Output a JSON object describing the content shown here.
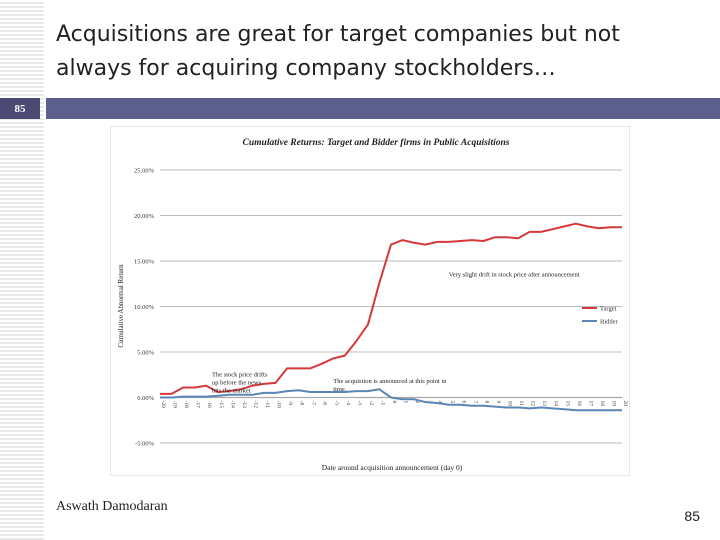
{
  "slide": {
    "title_line1": "Acquisitions are great for target companies but not",
    "title_line2": "always for acquiring company stockholders…",
    "slide_number_box": "85",
    "author": "Aswath Damodaran",
    "page_number": "85"
  },
  "colors": {
    "target": "#d43a3a",
    "bidder": "#5a86b6",
    "header_bar": "#5c5f8c",
    "number_box": "#4a4a72"
  },
  "chart_data": {
    "type": "line",
    "title": "Cumulative Returns: Target and Bidder firms in Public Acquisitions",
    "xlabel": "Date around acquisition announcement (day 0)",
    "ylabel": "Cumulative Abnormal Return",
    "ylim": [
      -5,
      25
    ],
    "yticks": [
      25,
      20,
      15,
      10,
      5,
      0,
      -5
    ],
    "ytick_labels": [
      "25.00%",
      "20.00%",
      "15.00%",
      "10.00%",
      "5.00%",
      "0.00%",
      "-5.00%"
    ],
    "grid": true,
    "legend_position": "right",
    "x": [
      -20,
      -19,
      -18,
      -17,
      -16,
      -15,
      -14,
      -13,
      -12,
      -11,
      -10,
      -9,
      -8,
      -7,
      -6,
      -5,
      -4,
      -3,
      -2,
      -1,
      0,
      1,
      2,
      3,
      4,
      5,
      6,
      7,
      8,
      9,
      10,
      11,
      12,
      13,
      14,
      15,
      16,
      17,
      18,
      19,
      20
    ],
    "series": [
      {
        "name": "Target",
        "color": "#d43a3a",
        "values": [
          0.4,
          0.4,
          1.1,
          1.1,
          1.3,
          0.6,
          0.7,
          0.9,
          1.3,
          1.5,
          1.6,
          3.2,
          3.2,
          3.2,
          3.7,
          4.3,
          4.6,
          6.2,
          8.0,
          12.6,
          16.8,
          17.3,
          17.0,
          16.8,
          17.1,
          17.1,
          17.2,
          17.3,
          17.2,
          17.6,
          17.6,
          17.5,
          18.2,
          18.2,
          18.5,
          18.8,
          19.1,
          18.8,
          18.6,
          18.7,
          18.7
        ]
      },
      {
        "name": "Bidder",
        "color": "#5a86b6",
        "values": [
          0.0,
          0.0,
          0.1,
          0.1,
          0.1,
          0.2,
          0.3,
          0.3,
          0.3,
          0.5,
          0.5,
          0.7,
          0.8,
          0.6,
          0.6,
          0.6,
          0.6,
          0.7,
          0.7,
          0.9,
          0.0,
          -0.2,
          -0.2,
          -0.5,
          -0.6,
          -0.8,
          -0.8,
          -0.9,
          -0.9,
          -1.0,
          -1.1,
          -1.1,
          -1.2,
          -1.1,
          -1.2,
          -1.3,
          -1.4,
          -1.4,
          -1.4,
          -1.4,
          -1.4
        ]
      }
    ],
    "annotations": [
      {
        "text_lines": [
          "The stock price drifts",
          "up before the news",
          "hits the market"
        ],
        "x": -15.5,
        "y": 2.3
      },
      {
        "text_lines": [
          "The acquistion is announced at this point in",
          "time."
        ],
        "x": -5.0,
        "y": 1.6
      },
      {
        "text_lines": [
          "Very slight drift in stock price after announcement"
        ],
        "x": 5.0,
        "y": 13.3
      }
    ]
  }
}
